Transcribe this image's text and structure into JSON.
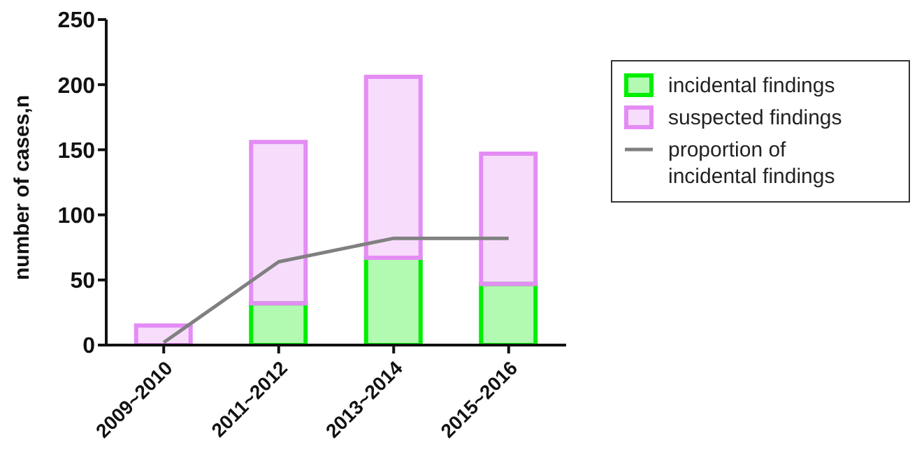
{
  "chart_data": {
    "type": "bar",
    "stacked": true,
    "ylabel": "number of cases,n",
    "categories": [
      "2009~2010",
      "2011~2012",
      "2013~2014",
      "2015~2016"
    ],
    "series": [
      {
        "name": "incidental findings",
        "color": "#00ee00",
        "values": [
          0,
          32,
          67,
          47
        ]
      },
      {
        "name": "suspected findings",
        "color": "#e48cf5",
        "values": [
          15,
          124,
          139,
          100
        ]
      },
      {
        "name": "proportion of incidental findings",
        "type": "line",
        "color": "#808080",
        "values": [
          2,
          64,
          82,
          82
        ]
      }
    ],
    "ylim": [
      0,
      250
    ],
    "yticks": [
      0,
      50,
      100,
      150,
      200,
      250
    ],
    "legend": "right",
    "marker": "none"
  }
}
